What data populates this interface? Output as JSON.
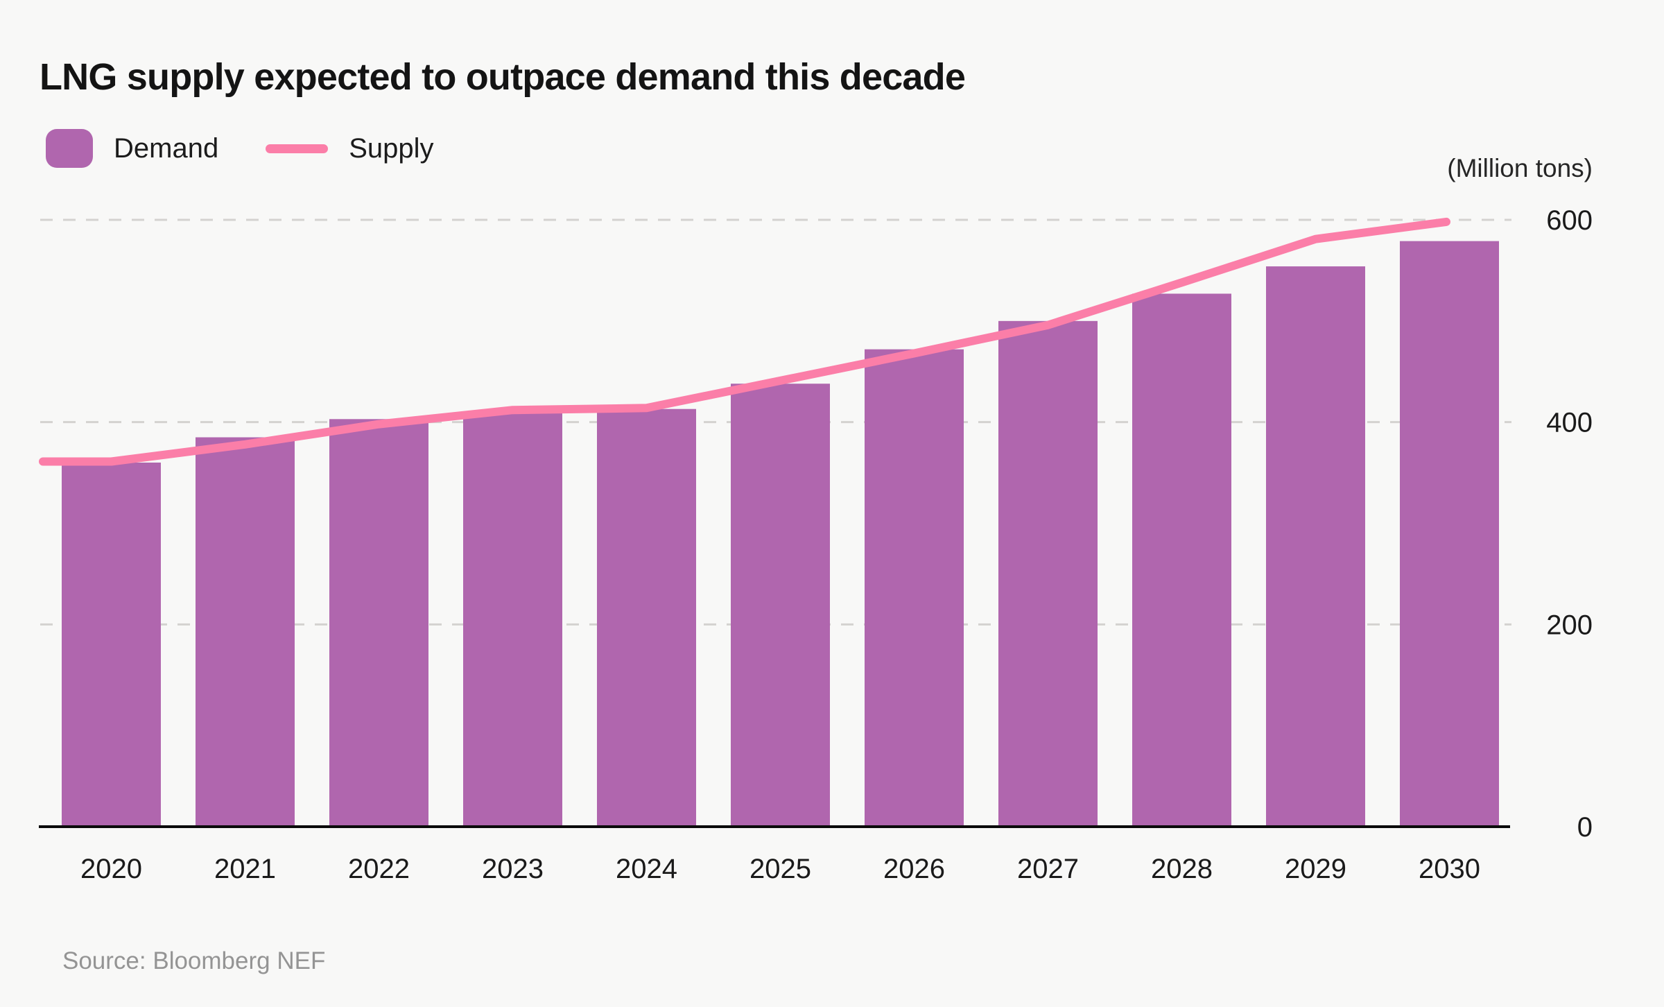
{
  "header": {
    "title": "LNG supply expected to outpace demand this decade"
  },
  "legend": {
    "demand": {
      "label": "Demand",
      "color": "#b066ae"
    },
    "supply": {
      "label": "Supply",
      "color": "#fb7ea8"
    }
  },
  "axis": {
    "unit_label": "(Million tons)"
  },
  "source": {
    "text": "Source: Bloomberg NEF"
  },
  "chart_data": {
    "type": "combo-bar-line",
    "title": "LNG supply expected to outpace demand this decade",
    "categories": [
      "2020",
      "2021",
      "2022",
      "2023",
      "2024",
      "2025",
      "2026",
      "2027",
      "2028",
      "2029",
      "2030"
    ],
    "series": [
      {
        "name": "Demand",
        "type": "bar",
        "color": "#b066ae",
        "values": [
          360,
          385,
          403,
          410,
          413,
          438,
          472,
          500,
          527,
          554,
          579
        ]
      },
      {
        "name": "Supply",
        "type": "line",
        "color": "#fb7ea8",
        "values": [
          361,
          378,
          398,
          412,
          414,
          441,
          468,
          496,
          538,
          581,
          598
        ]
      }
    ],
    "xlabel": "",
    "ylabel": "(Million tons)",
    "ylim": [
      0,
      600
    ],
    "yticks": [
      0,
      200,
      400,
      600
    ],
    "grid": "horizontal-dashed",
    "legend_position": "top-left",
    "background": "#f8f8f7",
    "gridline_color": "#d4d2d0",
    "axis_color": "#0b0b0b",
    "tick_text_color": "#1a1a1a",
    "source_color": "#949494"
  }
}
